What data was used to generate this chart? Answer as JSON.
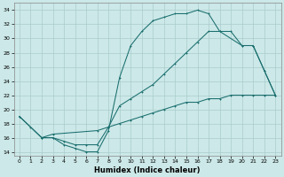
{
  "title": "",
  "xlabel": "Humidex (Indice chaleur)",
  "bg_color": "#cce8e8",
  "line_color": "#1a6e6e",
  "grid_color": "#aacccc",
  "xlim": [
    -0.5,
    23.5
  ],
  "ylim": [
    13.5,
    35
  ],
  "xticks": [
    0,
    1,
    2,
    3,
    4,
    5,
    6,
    7,
    8,
    9,
    10,
    11,
    12,
    13,
    14,
    15,
    16,
    17,
    18,
    19,
    20,
    21,
    22,
    23
  ],
  "yticks": [
    14,
    16,
    18,
    20,
    22,
    24,
    26,
    28,
    30,
    32,
    34
  ],
  "line1_x": [
    0,
    1,
    2,
    3,
    4,
    5,
    6,
    7,
    8,
    9,
    10,
    11,
    12,
    13,
    14,
    15,
    16,
    17,
    18,
    19,
    20,
    21,
    22,
    23
  ],
  "line1_y": [
    19,
    17.5,
    16,
    16,
    15,
    14.5,
    14,
    14,
    17,
    24.5,
    29,
    31,
    32.5,
    33,
    33.5,
    33.5,
    34,
    33.5,
    31,
    31,
    29,
    29,
    25.5,
    22
  ],
  "line2_x": [
    0,
    2,
    3,
    4,
    5,
    6,
    7,
    8,
    9,
    10,
    11,
    12,
    13,
    14,
    15,
    16,
    17,
    18,
    20,
    21,
    22,
    23
  ],
  "line2_y": [
    19,
    16,
    16,
    15.5,
    15,
    15,
    15,
    17.5,
    20.5,
    21.5,
    22.5,
    23.5,
    25,
    26.5,
    28,
    29.5,
    31,
    31,
    29,
    29,
    25.5,
    22
  ],
  "line3_x": [
    2,
    3,
    7,
    8,
    9,
    10,
    11,
    12,
    13,
    14,
    15,
    16,
    17,
    18,
    19,
    20,
    21,
    22,
    23
  ],
  "line3_y": [
    16,
    16.5,
    17,
    17.5,
    18,
    18.5,
    19,
    19.5,
    20,
    20.5,
    21,
    21,
    21.5,
    21.5,
    22,
    22,
    22,
    22,
    22
  ]
}
